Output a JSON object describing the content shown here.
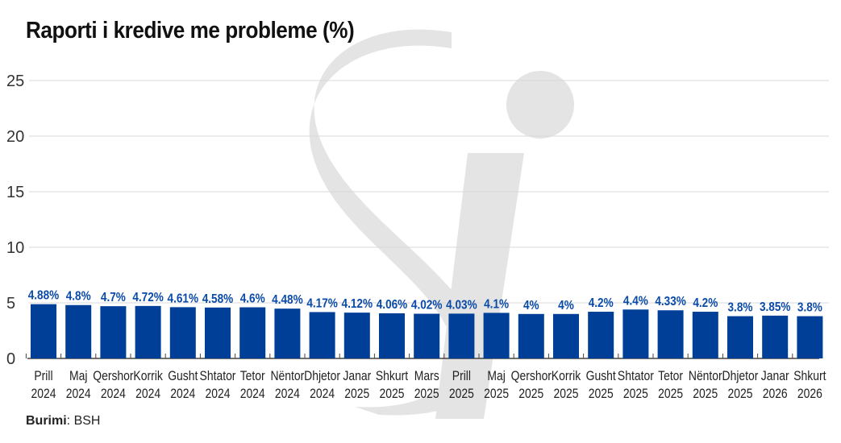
{
  "source": {
    "label": "Burimi",
    "value": ": BSH"
  },
  "chart_data": {
    "type": "bar",
    "title": "Raporti i kredive me probleme (%)",
    "xlabel": "",
    "ylabel": "",
    "ylim": [
      0,
      25
    ],
    "yticks": [
      "0",
      "5",
      "10",
      "15",
      "20",
      "25"
    ],
    "grid": true,
    "bar_color": "#003f98",
    "label_color": "#0a4aa8",
    "categories": [
      [
        "Prill",
        "2024"
      ],
      [
        "Maj",
        "2024"
      ],
      [
        "Qershor",
        "2024"
      ],
      [
        "Korrik",
        "2024"
      ],
      [
        "Gusht",
        "2024"
      ],
      [
        "Shtator",
        "2024"
      ],
      [
        "Tetor",
        "2024"
      ],
      [
        "Nëntor",
        "2024"
      ],
      [
        "Dhjetor",
        "2024"
      ],
      [
        "Janar",
        "2025"
      ],
      [
        "Shkurt",
        "2025"
      ],
      [
        "Mars",
        "2025"
      ],
      [
        "Prill",
        "2025"
      ],
      [
        "Maj",
        "2025"
      ],
      [
        "Qershor",
        "2025"
      ],
      [
        "Korrik",
        "2025"
      ],
      [
        "Gusht",
        "2025"
      ],
      [
        "Shtator",
        "2025"
      ],
      [
        "Tetor",
        "2025"
      ],
      [
        "Nëntor",
        "2025"
      ],
      [
        "Dhjetor",
        "2025"
      ],
      [
        "Janar",
        "2026"
      ],
      [
        "Shkurt",
        "2026"
      ]
    ],
    "values": [
      4.88,
      4.8,
      4.7,
      4.72,
      4.61,
      4.58,
      4.6,
      4.48,
      4.17,
      4.12,
      4.06,
      4.02,
      4.03,
      4.1,
      4,
      4,
      4.2,
      4.4,
      4.33,
      4.2,
      3.8,
      3.85,
      3.8
    ],
    "data_labels": [
      "4.88%",
      "4.8%",
      "4.7%",
      "4.72%",
      "4.61%",
      "4.58%",
      "4.6%",
      "4.48%",
      "4.17%",
      "4.12%",
      "4.06%",
      "4.02%",
      "4.03%",
      "4.1%",
      "4%",
      "4%",
      "4.2%",
      "4.4%",
      "4.33%",
      "4.2%",
      "3.8%",
      "3.85%",
      "3.8%"
    ]
  }
}
